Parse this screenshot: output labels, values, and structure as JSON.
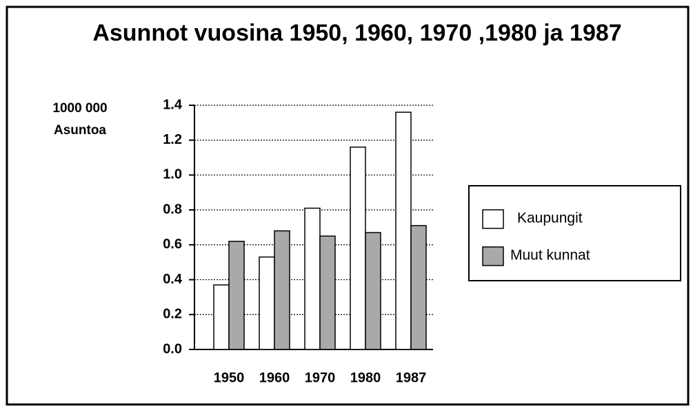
{
  "chart_data": {
    "type": "bar",
    "title": "Asunnot vuosina 1950, 1960, 1970 ,1980 ja 1987",
    "y_label": [
      "1000 000",
      "Asuntoa"
    ],
    "categories": [
      "1950",
      "1960",
      "1970",
      "1980",
      "1987"
    ],
    "series": [
      {
        "name": "Kaupungit",
        "color": "#ffffff",
        "values": [
          0.37,
          0.53,
          0.81,
          1.16,
          1.36
        ]
      },
      {
        "name": "Muut kunnat",
        "color": "#a9a9a9",
        "values": [
          0.62,
          0.68,
          0.65,
          0.67,
          0.71
        ]
      }
    ],
    "ylim": [
      0,
      1.4
    ],
    "yticks": [
      {
        "value": 0,
        "label": "0.0"
      },
      0.2,
      0.4,
      0.6,
      0.8,
      {
        "value": 1,
        "label": "1.0"
      },
      1.2,
      1.4
    ],
    "grid": true,
    "legend": "right"
  }
}
